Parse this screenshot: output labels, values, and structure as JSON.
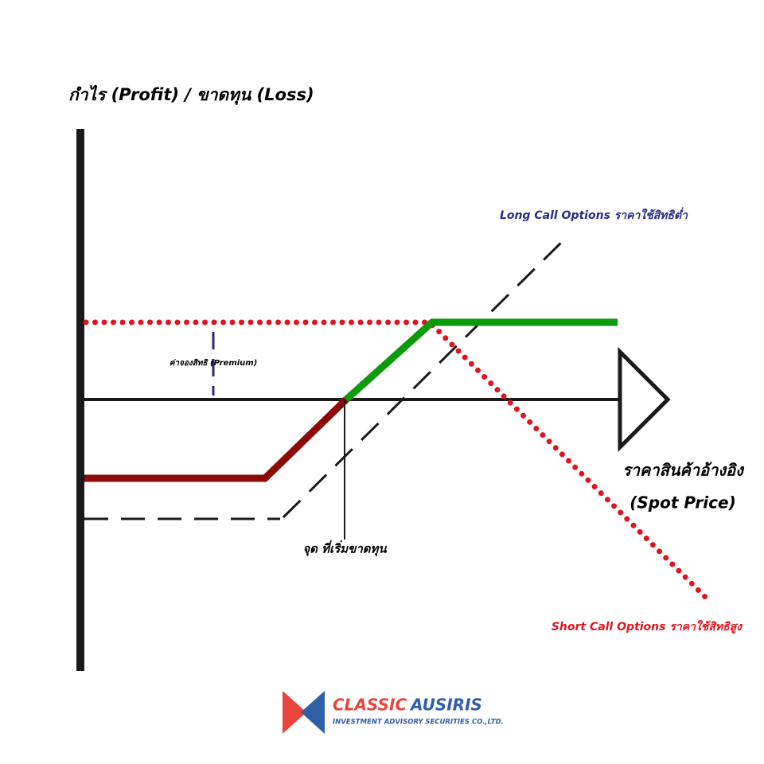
{
  "y_axis_label": "กำไร (Profit) / ขาดทุน (Loss)",
  "long_call_label": "Long Call Options ราคาใช้สิทธิต่ำ",
  "premium_label": "ค่าจองสิทธิ (Premium)",
  "x_axis_label": {
    "line1": "ราคาสินค้าอ้างอิง",
    "line2": "(Spot Price)"
  },
  "breakeven_label": "จุด ที่เริ่มขาดทุน",
  "short_call_label": "Short Call Options ราคาใช้สิทธิสูง",
  "logo": {
    "word1": "CLASSIC",
    "word2": "AUSIRIS",
    "tagline": "INVESTMENT ADVISORY SECURITIES CO.,LTD."
  }
}
